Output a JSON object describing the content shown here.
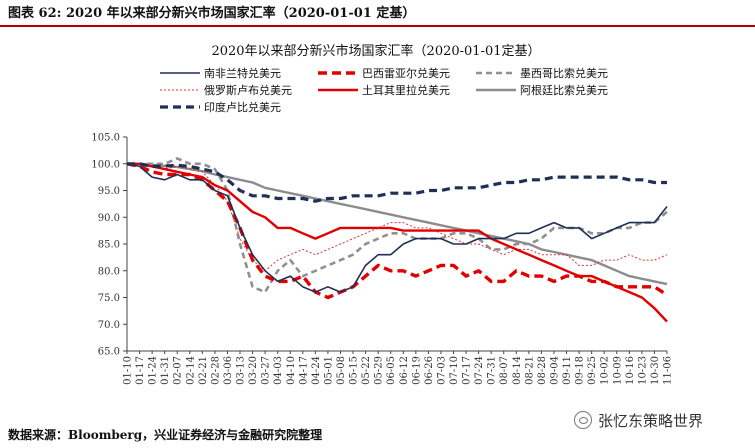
{
  "caption": "图表 62:  2020 年以来部分新兴市场国家汇率（2020-01-01 定基）",
  "source": "数据来源：Bloomberg，兴业证券经济与金融研究院整理",
  "watermark": "张忆东策略世界",
  "chart_data": {
    "type": "line",
    "title": "2020年以来部分新兴市场国家汇率（2020-01-01定基）",
    "ylim": [
      65,
      105
    ],
    "yticks": [
      "105.0",
      "100.0",
      "95.0",
      "90.0",
      "85.0",
      "80.0",
      "75.0",
      "70.0",
      "65.0"
    ],
    "grid": false,
    "legend_position": "top",
    "x_labels": [
      "01-10",
      "01-17",
      "01-24",
      "01-31",
      "02-07",
      "02-14",
      "02-21",
      "02-28",
      "03-06",
      "03-13",
      "03-20",
      "03-27",
      "04-03",
      "04-10",
      "04-17",
      "04-24",
      "05-01",
      "05-08",
      "05-15",
      "05-22",
      "05-29",
      "06-05",
      "06-12",
      "06-19",
      "06-26",
      "07-03",
      "07-10",
      "07-17",
      "07-24",
      "07-31",
      "08-07",
      "08-14",
      "08-21",
      "08-28",
      "09-04",
      "09-11",
      "09-18",
      "09-25",
      "10-02",
      "10-09",
      "10-16",
      "10-23",
      "10-30",
      "11-06"
    ],
    "series": [
      {
        "name": "南非兰特兑美元",
        "color": "#1f2f55",
        "dash": "solid",
        "width": 1.6,
        "values": [
          100,
          99.5,
          97.5,
          97,
          98,
          97,
          97,
          95,
          94,
          88,
          83,
          80,
          78,
          79,
          77,
          76,
          77,
          76,
          77,
          81,
          83,
          83,
          85,
          86,
          86,
          86,
          85,
          85,
          86,
          86,
          86,
          87,
          87,
          88,
          89,
          88,
          88,
          86,
          87,
          88,
          89,
          89,
          89,
          92
        ]
      },
      {
        "name": "巴西雷亚尔兑美元",
        "color": "#e00000",
        "dash": "9,5",
        "width": 3.4,
        "values": [
          100,
          99.5,
          98.5,
          98,
          98,
          98,
          97,
          95,
          93,
          88,
          82,
          79,
          78,
          78,
          79,
          76,
          75,
          76,
          77,
          79,
          81,
          80,
          80,
          79,
          80,
          81,
          81,
          79,
          80,
          78,
          78,
          80,
          79,
          79,
          78,
          79,
          79,
          78,
          78,
          77,
          77,
          77,
          77,
          75.5
        ]
      },
      {
        "name": "墨西哥比索兑美元",
        "color": "#909090",
        "dash": "6,4",
        "width": 2.6,
        "values": [
          100,
          100,
          100,
          100,
          101,
          100,
          100,
          99,
          95,
          85,
          77,
          76,
          80,
          82,
          79,
          80,
          81,
          82,
          83,
          85,
          86,
          87,
          87,
          86,
          86,
          86,
          87,
          87,
          86,
          84,
          84,
          85,
          85,
          86,
          88,
          88,
          88,
          87,
          87,
          88,
          88,
          89,
          89,
          91
        ]
      },
      {
        "name": "俄罗斯卢布兑美元",
        "color": "#e03030",
        "dash": "2,2",
        "width": 1,
        "values": [
          100,
          100,
          100,
          99,
          99.5,
          99,
          98.5,
          96,
          93,
          86,
          82,
          80,
          82,
          83,
          84,
          83,
          84,
          85,
          86,
          87,
          88,
          89,
          89,
          88,
          88,
          87,
          86,
          85,
          85,
          84,
          83,
          84,
          84,
          83,
          83,
          83,
          81,
          81,
          82,
          82,
          83,
          82,
          82,
          83
        ]
      },
      {
        "name": "土耳其里拉兑美元",
        "color": "#e00000",
        "dash": "solid",
        "width": 2.4,
        "values": [
          100,
          100,
          99.5,
          99,
          98.5,
          98,
          97.5,
          96,
          95,
          93,
          91,
          90,
          88,
          88,
          87,
          86,
          87,
          88,
          88,
          88,
          88,
          88,
          87.5,
          87.5,
          87.5,
          87.5,
          87.5,
          87.5,
          87.5,
          86,
          85,
          84,
          83,
          82,
          81,
          80,
          79,
          79,
          78,
          77,
          76,
          75,
          73,
          70.5
        ]
      },
      {
        "name": "阿根廷比索兑美元",
        "color": "#8c8c8c",
        "dash": "solid",
        "width": 2.4,
        "values": [
          100,
          100,
          99.8,
          99.6,
          99.4,
          99,
          98.6,
          98,
          97.5,
          97,
          96.5,
          95.5,
          95,
          94.5,
          94,
          93.5,
          93,
          92.5,
          92,
          91.5,
          91,
          90.5,
          90,
          89.5,
          89,
          88.5,
          88,
          87.5,
          87,
          86.5,
          86,
          85.5,
          85,
          84,
          83.5,
          83,
          82.5,
          82,
          81,
          80,
          79,
          78.5,
          78,
          77.5
        ]
      },
      {
        "name": "印度卢比兑美元",
        "color": "#1f2f55",
        "dash": "8,5",
        "width": 3.2,
        "values": [
          100,
          100,
          99.5,
          99.6,
          99.7,
          99.5,
          99,
          98.5,
          97,
          95,
          94,
          94,
          93.5,
          93.5,
          93.5,
          93,
          93.5,
          93.5,
          94,
          94,
          94,
          94.5,
          94.5,
          94.5,
          95,
          95,
          95.5,
          95.5,
          95.5,
          96,
          96.5,
          96.5,
          97,
          97,
          97.5,
          97.5,
          97.5,
          97.5,
          97.5,
          97.5,
          97,
          97,
          96.5,
          96.5
        ]
      }
    ]
  }
}
